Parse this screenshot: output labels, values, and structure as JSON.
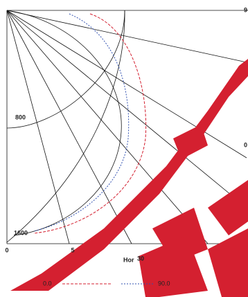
{
  "chart_data": {
    "type": "polar",
    "rticks": [
      800,
      1600
    ],
    "xticks": [
      0,
      5
    ],
    "x_partial_labels": [
      "Hor",
      "30"
    ],
    "corner_labels": [
      "9",
      "0"
    ],
    "series": [
      {
        "name": "0.0",
        "color": "#d42030"
      },
      {
        "name": "90.0",
        "color": "#3050b0"
      }
    ]
  }
}
